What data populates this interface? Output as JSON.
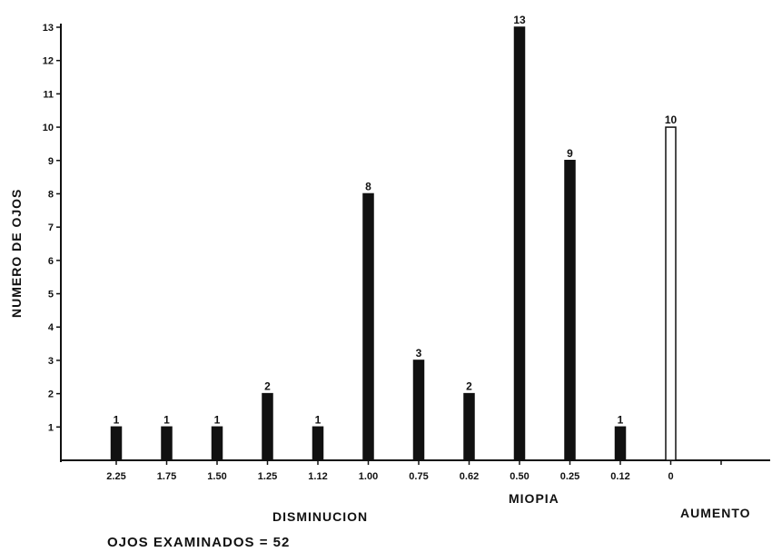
{
  "chart_data": {
    "type": "bar",
    "ylabel": "NUMERO DE OJOS",
    "xlabel": "MIOPIA",
    "xlabel_left": "DISMINUCION",
    "xlabel_right": "AUMENTO",
    "note": "OJOS EXAMINADOS = 52",
    "ylim": [
      0,
      13
    ],
    "yticks": [
      "1",
      "2",
      "3",
      "4",
      "5",
      "6",
      "7",
      "8",
      "9",
      "10",
      "11",
      "12",
      "13"
    ],
    "categories": [
      "2.25",
      "1.75",
      "1.50",
      "1.25",
      "1.12",
      "1.00",
      "0.75",
      "0.62",
      "0.50",
      "0.25",
      "0.12",
      "0"
    ],
    "values": [
      1,
      1,
      1,
      2,
      1,
      8,
      3,
      2,
      13,
      9,
      1,
      10
    ],
    "data_labels": [
      "1",
      "1",
      "1",
      "2",
      "1",
      "8",
      "3",
      "2",
      "13",
      "9",
      "1",
      "10"
    ],
    "bar_fill": [
      "#111111",
      "#111111",
      "#111111",
      "#111111",
      "#111111",
      "#111111",
      "#111111",
      "#111111",
      "#111111",
      "#111111",
      "#111111",
      "#ffffff"
    ],
    "grid": false,
    "legend": "none"
  }
}
